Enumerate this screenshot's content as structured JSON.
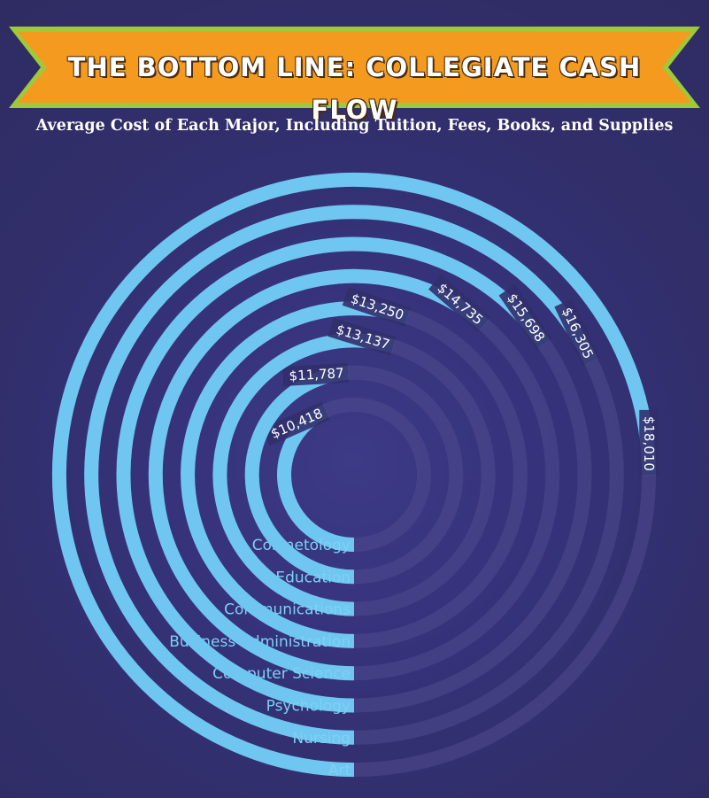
{
  "title": "THE BOTTOM LINE: COLLEGIATE CASH FLOW",
  "subtitle": "Average Cost of Each Major, Including Tuition, Fees, Books, and Supplies",
  "colors": {
    "background": "#322f6b",
    "banner_orange": "#f49a1f",
    "banner_green": "#9dc93a",
    "bar": "#6fc6f0",
    "track": "#4e4b8e",
    "label": "#7dd1f3"
  },
  "chart_data": {
    "type": "radial-bar",
    "categories": [
      "Cosmetology",
      "Education",
      "Communications",
      "Business Administration",
      "Computer Science",
      "Psychology",
      "Nursing",
      "Art"
    ],
    "values": [
      10418,
      11787,
      13137,
      13250,
      14735,
      15698,
      16305,
      18010
    ],
    "value_labels": [
      "$10,418",
      "$11,787",
      "$13,137",
      "$13,250",
      "$14,735",
      "$15,698",
      "$16,305",
      "$18,010"
    ],
    "full_circle_value": 24000
  }
}
